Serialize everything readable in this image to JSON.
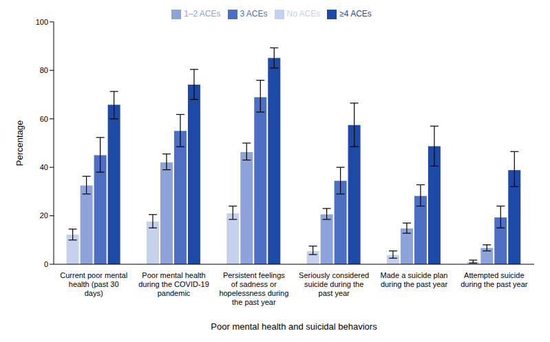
{
  "chart_data": {
    "type": "bar",
    "x_label": "Poor mental health and suicidal behaviors",
    "y_label": "Percentage",
    "categories": [
      "Current poor mental health (past 30 days)",
      "Poor mental health during the COVID-19 pandemic",
      "Persistent feelings of sadness or hopelessness during the past year",
      "Seriously considered suicide during the past year",
      "Made a suicide plan during the past year",
      "Attempted suicide during the past year"
    ],
    "series": [
      {
        "name": "No ACEs",
        "color": "#c6d1ed",
        "values": [
          12.2,
          17.6,
          21,
          5.4,
          3.8,
          1
        ],
        "ci_lower": [
          10,
          15,
          18.5,
          4,
          2.5,
          0.5
        ],
        "ci_upper": [
          14.5,
          20.5,
          24,
          7.5,
          5.5,
          1.7
        ]
      },
      {
        "name": "1–2 ACEs",
        "color": "#8ea3d9",
        "values": [
          32.5,
          42,
          46.3,
          20.6,
          14.8,
          6.7
        ],
        "ci_lower": [
          29,
          39,
          43,
          18.5,
          12.8,
          5.5
        ],
        "ci_upper": [
          36.3,
          45.5,
          50,
          23,
          17,
          8
        ]
      },
      {
        "name": "3 ACEs",
        "color": "#4c6ec3",
        "values": [
          45,
          55,
          68.9,
          34.4,
          28.2,
          19.3
        ],
        "ci_lower": [
          38,
          48.5,
          62.8,
          29,
          24,
          15
        ],
        "ci_upper": [
          52.3,
          61.8,
          75.9,
          40,
          32.8,
          24
        ]
      },
      {
        "name": "≥4 ACEs",
        "color": "#1d4aa7",
        "values": [
          65.8,
          74.1,
          85.1,
          57.4,
          48.7,
          38.8
        ],
        "ci_lower": [
          60,
          68,
          81,
          48.5,
          40.5,
          32
        ],
        "ci_upper": [
          71.3,
          80.4,
          89.3,
          66.5,
          57,
          46.5
        ]
      }
    ],
    "ylim": [
      0,
      100
    ],
    "yticks": [
      0,
      20,
      40,
      60,
      80,
      100
    ],
    "grid": false,
    "legend": "top"
  }
}
